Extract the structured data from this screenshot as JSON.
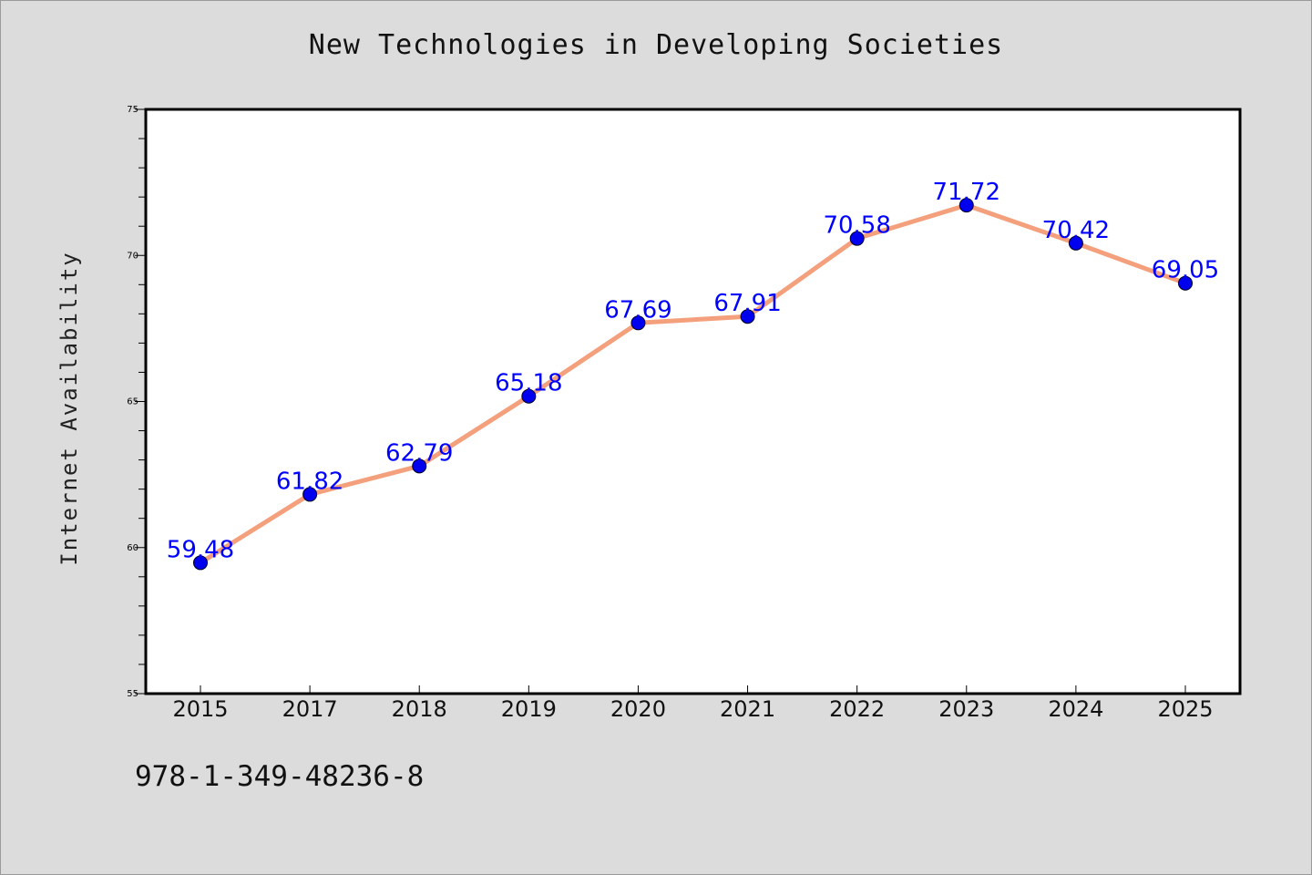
{
  "chart_data": {
    "type": "line",
    "title": "New Technologies in Developing Societies",
    "xlabel": "",
    "ylabel": "Internet Availability",
    "categories": [
      "2015",
      "2017",
      "2018",
      "2019",
      "2020",
      "2021",
      "2022",
      "2023",
      "2024",
      "2025"
    ],
    "values": [
      59.48,
      61.82,
      62.79,
      65.18,
      67.69,
      67.91,
      70.58,
      71.72,
      70.42,
      69.05
    ],
    "data_labels": [
      "59.48",
      "61.82",
      "62.79",
      "65.18",
      "67.69",
      "67.91",
      "70.58",
      "71.72",
      "70.42",
      "69.05"
    ],
    "ylim": [
      55,
      75
    ],
    "yticks": [
      "55",
      "60",
      "65",
      "70",
      "75"
    ],
    "grid": false,
    "legend": "none",
    "colors": {
      "line": "#f4a07d",
      "marker": "#0000ee",
      "label": "#0000ff",
      "plot_bg": "#ffffff",
      "page_bg": "#dcdcdc"
    }
  },
  "footer": {
    "code": "978-1-349-48236-8"
  }
}
